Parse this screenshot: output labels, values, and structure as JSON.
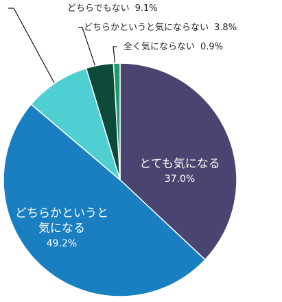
{
  "chart_data": {
    "type": "pie",
    "categories": [
      "とても気になる",
      "どちらかというと気になる",
      "どちらでもない",
      "どちらかというと気にならない",
      "全く気にならない"
    ],
    "values": [
      37.0,
      49.2,
      9.1,
      3.8,
      0.9
    ],
    "value_labels": [
      "37.0%",
      "49.2%",
      "9.1%",
      "3.8%",
      "0.9%"
    ],
    "colors": [
      "#4a4570",
      "#1a7fc0",
      "#4fcfd1",
      "#0d4a3a",
      "#1b9a6c"
    ]
  }
}
